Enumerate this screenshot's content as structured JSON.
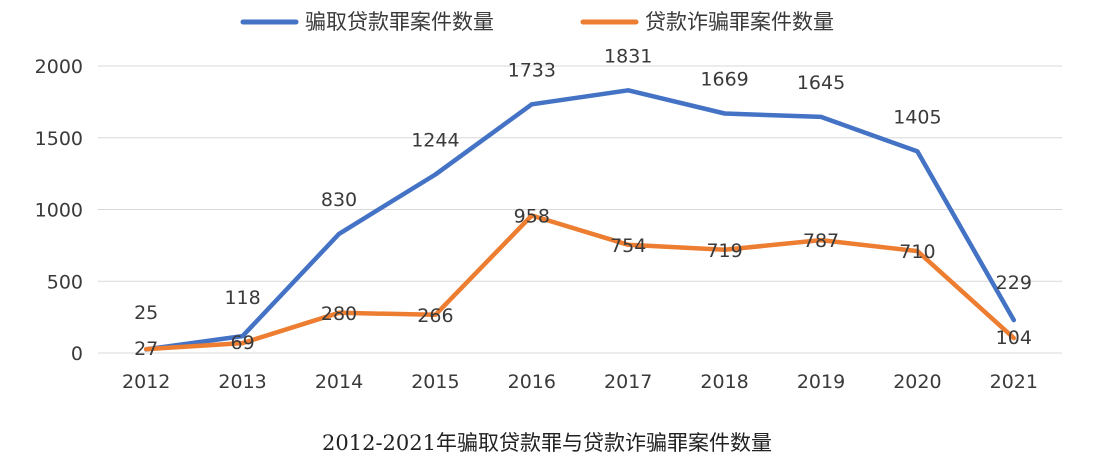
{
  "chart_data": {
    "type": "line",
    "title": "",
    "caption": "2012-2021年骗取贷款罪与贷款诈骗罪案件数量",
    "xlabel": "",
    "ylabel": "",
    "categories": [
      "2012",
      "2013",
      "2014",
      "2015",
      "2016",
      "2017",
      "2018",
      "2019",
      "2020",
      "2021"
    ],
    "ylim": [
      0,
      2000
    ],
    "yticks": [
      0,
      500,
      1000,
      1500,
      2000
    ],
    "grid": true,
    "legend_position": "top-center",
    "series": [
      {
        "name": "骗取贷款罪案件数量",
        "color": "#4472C4",
        "values": [
          25,
          118,
          830,
          1244,
          1733,
          1831,
          1669,
          1645,
          1405,
          229
        ]
      },
      {
        "name": "贷款诈骗罪案件数量",
        "color": "#ED7D31",
        "values": [
          27,
          69,
          280,
          266,
          958,
          754,
          719,
          787,
          710,
          104
        ]
      }
    ]
  },
  "colors": {
    "grid": "#d9d9d9",
    "text": "#3a3a3a"
  }
}
